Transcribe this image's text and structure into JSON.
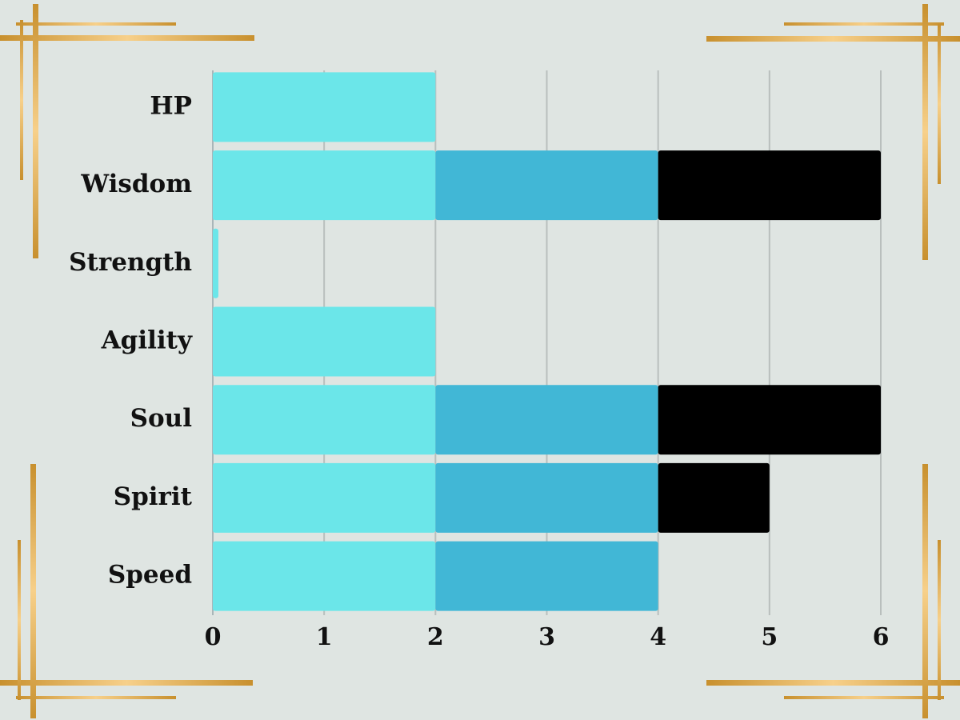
{
  "chart_data": {
    "type": "stacked-barh",
    "categories": [
      "HP",
      "Wisdom",
      "Strength",
      "Agility",
      "Soul",
      "Spirit",
      "Speed"
    ],
    "series": [
      {
        "color": "#6be6e9",
        "values": [
          2,
          2,
          0.05,
          2,
          2,
          2,
          2
        ]
      },
      {
        "color": "#41b7d6",
        "values": [
          0,
          2,
          0,
          0,
          2,
          2,
          2
        ]
      },
      {
        "color": "#000000",
        "values": [
          0,
          2,
          0,
          0,
          2,
          1,
          0
        ]
      }
    ],
    "xlim": [
      0,
      6
    ],
    "xticks": [
      0,
      1,
      2,
      3,
      4,
      5,
      6
    ],
    "grid": true
  }
}
